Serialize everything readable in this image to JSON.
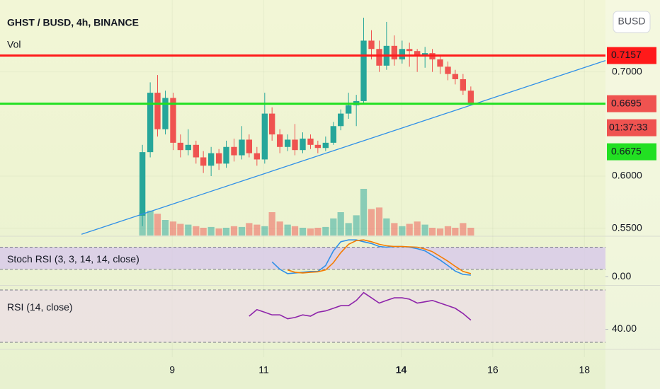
{
  "chart_data": {
    "type": "candlestick",
    "title": "GHST / BUSD, 4h, BINANCE",
    "currency": "BUSD",
    "up_color": "#26a69a",
    "down_color": "#ef5350",
    "x": [
      8.35,
      8.52,
      8.68,
      8.85,
      9.02,
      9.18,
      9.35,
      9.52,
      9.68,
      9.85,
      10.02,
      10.18,
      10.35,
      10.52,
      10.68,
      10.85,
      11.02,
      11.18,
      11.35,
      11.52,
      11.68,
      11.85,
      12.02,
      12.18,
      12.35,
      12.52,
      12.68,
      12.85,
      13.02,
      13.18,
      13.35,
      13.52,
      13.68,
      13.85,
      14.02,
      14.18,
      14.35,
      14.52,
      14.68,
      14.85,
      15.02,
      15.18,
      15.35,
      15.52
    ],
    "open": [
      0.562,
      0.623,
      0.68,
      0.645,
      0.675,
      0.632,
      0.625,
      0.63,
      0.618,
      0.61,
      0.622,
      0.612,
      0.628,
      0.62,
      0.635,
      0.622,
      0.616,
      0.66,
      0.64,
      0.628,
      0.635,
      0.625,
      0.636,
      0.63,
      0.627,
      0.632,
      0.648,
      0.66,
      0.668,
      0.672,
      0.73,
      0.722,
      0.706,
      0.725,
      0.712,
      0.722,
      0.72,
      0.716,
      0.718,
      0.712,
      0.705,
      0.698,
      0.693,
      0.682
    ],
    "high": [
      0.63,
      0.69,
      0.697,
      0.682,
      0.68,
      0.64,
      0.645,
      0.634,
      0.624,
      0.628,
      0.626,
      0.634,
      0.636,
      0.648,
      0.64,
      0.628,
      0.68,
      0.666,
      0.645,
      0.64,
      0.65,
      0.642,
      0.64,
      0.634,
      0.638,
      0.652,
      0.664,
      0.68,
      0.678,
      0.752,
      0.74,
      0.73,
      0.748,
      0.735,
      0.73,
      0.728,
      0.722,
      0.724,
      0.722,
      0.716,
      0.71,
      0.702,
      0.698,
      0.686
    ],
    "low": [
      0.552,
      0.618,
      0.638,
      0.64,
      0.625,
      0.618,
      0.62,
      0.612,
      0.603,
      0.6,
      0.606,
      0.608,
      0.614,
      0.616,
      0.618,
      0.61,
      0.612,
      0.634,
      0.622,
      0.624,
      0.62,
      0.622,
      0.626,
      0.622,
      0.624,
      0.63,
      0.644,
      0.655,
      0.648,
      0.67,
      0.712,
      0.7,
      0.702,
      0.706,
      0.708,
      0.705,
      0.7,
      0.704,
      0.7,
      0.698,
      0.692,
      0.688,
      0.678,
      0.668
    ],
    "close": [
      0.623,
      0.68,
      0.645,
      0.675,
      0.632,
      0.625,
      0.63,
      0.618,
      0.61,
      0.622,
      0.612,
      0.628,
      0.62,
      0.635,
      0.622,
      0.616,
      0.66,
      0.64,
      0.628,
      0.635,
      0.625,
      0.636,
      0.63,
      0.627,
      0.632,
      0.648,
      0.66,
      0.668,
      0.672,
      0.73,
      0.722,
      0.706,
      0.725,
      0.712,
      0.722,
      0.72,
      0.716,
      0.718,
      0.712,
      0.705,
      0.698,
      0.693,
      0.682,
      0.67
    ],
    "xlim": [
      5.24,
      18.46
    ],
    "xticks": [
      9,
      11,
      14,
      16,
      18
    ],
    "xtick_bold": 14,
    "ylim": [
      0.543,
      0.769
    ],
    "yticks": [
      {
        "value": 0.55,
        "label": "0.5500"
      },
      {
        "value": 0.6,
        "label": "0.6000"
      },
      {
        "value": 0.7,
        "label": "0.7000"
      }
    ],
    "volume": {
      "name": "Vol",
      "vlim": [
        0,
        100
      ],
      "values": [
        30,
        32,
        28,
        20,
        18,
        15,
        14,
        12,
        10,
        11,
        9,
        10,
        12,
        11,
        16,
        14,
        12,
        30,
        18,
        14,
        12,
        10,
        9,
        10,
        11,
        22,
        30,
        16,
        26,
        60,
        34,
        36,
        22,
        16,
        12,
        15,
        18,
        14,
        10,
        9,
        12,
        10,
        16,
        10
      ]
    },
    "trendline": {
      "x": [
        7.02,
        18.46
      ],
      "y": [
        0.5442,
        0.7109
      ],
      "color": "#2f8fe8"
    },
    "price_lines": [
      {
        "value": 0.7157,
        "color": "#ff1a1a"
      },
      {
        "value": 0.6695,
        "color": "#22e022"
      }
    ],
    "price_labels": [
      {
        "value": 0.7157,
        "color": "#ff1a1a",
        "text_color": "#ffffff"
      },
      {
        "value": 0.6695,
        "color": "#ef5350",
        "text_color": "#ffffff",
        "countdown": "01:37:33"
      },
      {
        "value": 0.6675,
        "color": "#22e022",
        "text_color": "#131722"
      }
    ],
    "indicators": [
      {
        "name": "Stoch RSI (3, 3, 14, 14, close)",
        "ylim": [
          -21,
          108
        ],
        "yticks": [
          {
            "value": 0,
            "label": "0.00"
          }
        ],
        "bands": [
          20,
          80
        ],
        "band_color": "#d7c6ec",
        "series": [
          {
            "color": "#2f8fe8",
            "values": [
              null,
              null,
              null,
              null,
              null,
              null,
              null,
              null,
              null,
              null,
              null,
              null,
              null,
              null,
              null,
              null,
              null,
              40,
              20,
              8,
              10,
              12,
              14,
              14,
              30,
              70,
              95,
              100,
              100,
              95,
              90,
              82,
              80,
              82,
              82,
              80,
              76,
              70,
              58,
              45,
              30,
              15,
              6,
              4
            ]
          },
          {
            "color": "#f57c00",
            "values": [
              null,
              null,
              null,
              null,
              null,
              null,
              null,
              null,
              null,
              null,
              null,
              null,
              null,
              null,
              null,
              null,
              null,
              null,
              null,
              18,
              12,
              10,
              12,
              13,
              18,
              38,
              65,
              88,
              98,
              100,
              95,
              88,
              84,
              82,
              82,
              81,
              80,
              75,
              68,
              55,
              42,
              28,
              14,
              8
            ]
          }
        ]
      },
      {
        "name": "RSI (14, close)",
        "ylim": [
          25.7,
          72.7
        ],
        "yticks": [
          {
            "value": 40,
            "label": "40.00"
          }
        ],
        "bands": [
          30,
          70
        ],
        "band_color": "#ecdde6",
        "series": [
          {
            "color": "#8e24aa",
            "values": [
              null,
              null,
              null,
              null,
              null,
              null,
              null,
              null,
              null,
              null,
              null,
              null,
              null,
              null,
              50,
              55,
              53,
              51,
              51,
              48,
              49,
              51,
              50,
              53,
              54,
              56,
              58,
              58,
              62,
              68,
              64,
              60,
              62,
              64,
              64,
              63,
              60,
              61,
              62,
              60,
              58,
              56,
              52,
              47
            ]
          }
        ]
      }
    ]
  }
}
